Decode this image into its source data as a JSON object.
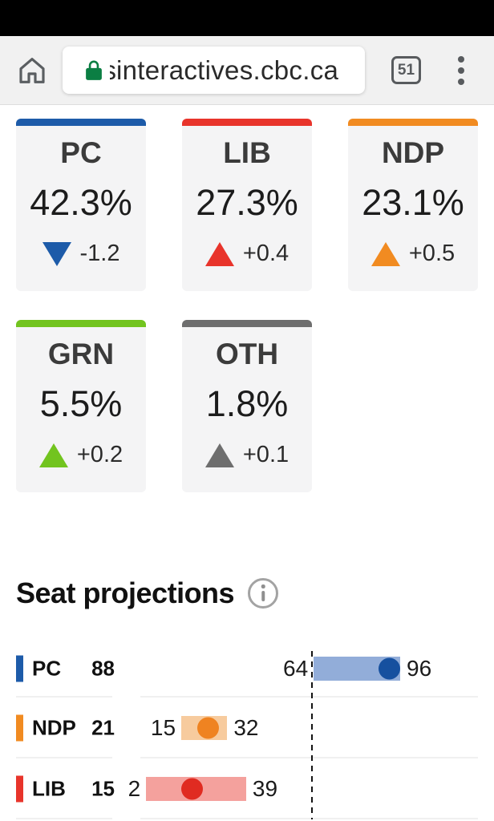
{
  "browser": {
    "url_prefix_clipped": "s",
    "url_visible": "interactives.cbc.ca",
    "tab_count": "51",
    "lock_color": "#0b7e43"
  },
  "poll_cards": [
    {
      "party": "PC",
      "percent": "42.3%",
      "change": "-1.2",
      "direction": "down",
      "color": "#1d5ba9"
    },
    {
      "party": "LIB",
      "percent": "27.3%",
      "change": "+0.4",
      "direction": "up",
      "color": "#e8342b"
    },
    {
      "party": "NDP",
      "percent": "23.1%",
      "change": "+0.5",
      "direction": "up",
      "color": "#f18b21"
    },
    {
      "party": "GRN",
      "percent": "5.5%",
      "change": "+0.2",
      "direction": "up",
      "color": "#72c41f"
    },
    {
      "party": "OTH",
      "percent": "1.8%",
      "change": "+0.1",
      "direction": "up",
      "color": "#6e6e6e"
    }
  ],
  "seat_section": {
    "title": "Seat projections"
  },
  "chart_data": {
    "type": "range-bar",
    "title": "Seat projections",
    "rows": [
      {
        "party": "PC",
        "seats": 88,
        "low": 64,
        "high": 96,
        "dot_color": "#16509f",
        "range_color": "#92add9",
        "tick_color": "#1d5ba9"
      },
      {
        "party": "NDP",
        "seats": 21,
        "low": 15,
        "high": 32,
        "dot_color": "#ef8321",
        "range_color": "#f7cb9e",
        "tick_color": "#f18b21"
      },
      {
        "party": "LIB",
        "seats": 15,
        "low": 2,
        "high": 39,
        "dot_color": "#e02b21",
        "range_color": "#f4a19d",
        "tick_color": "#e8342b"
      }
    ],
    "majority_line_seats": 63,
    "legend_position": "left",
    "grid": false
  }
}
